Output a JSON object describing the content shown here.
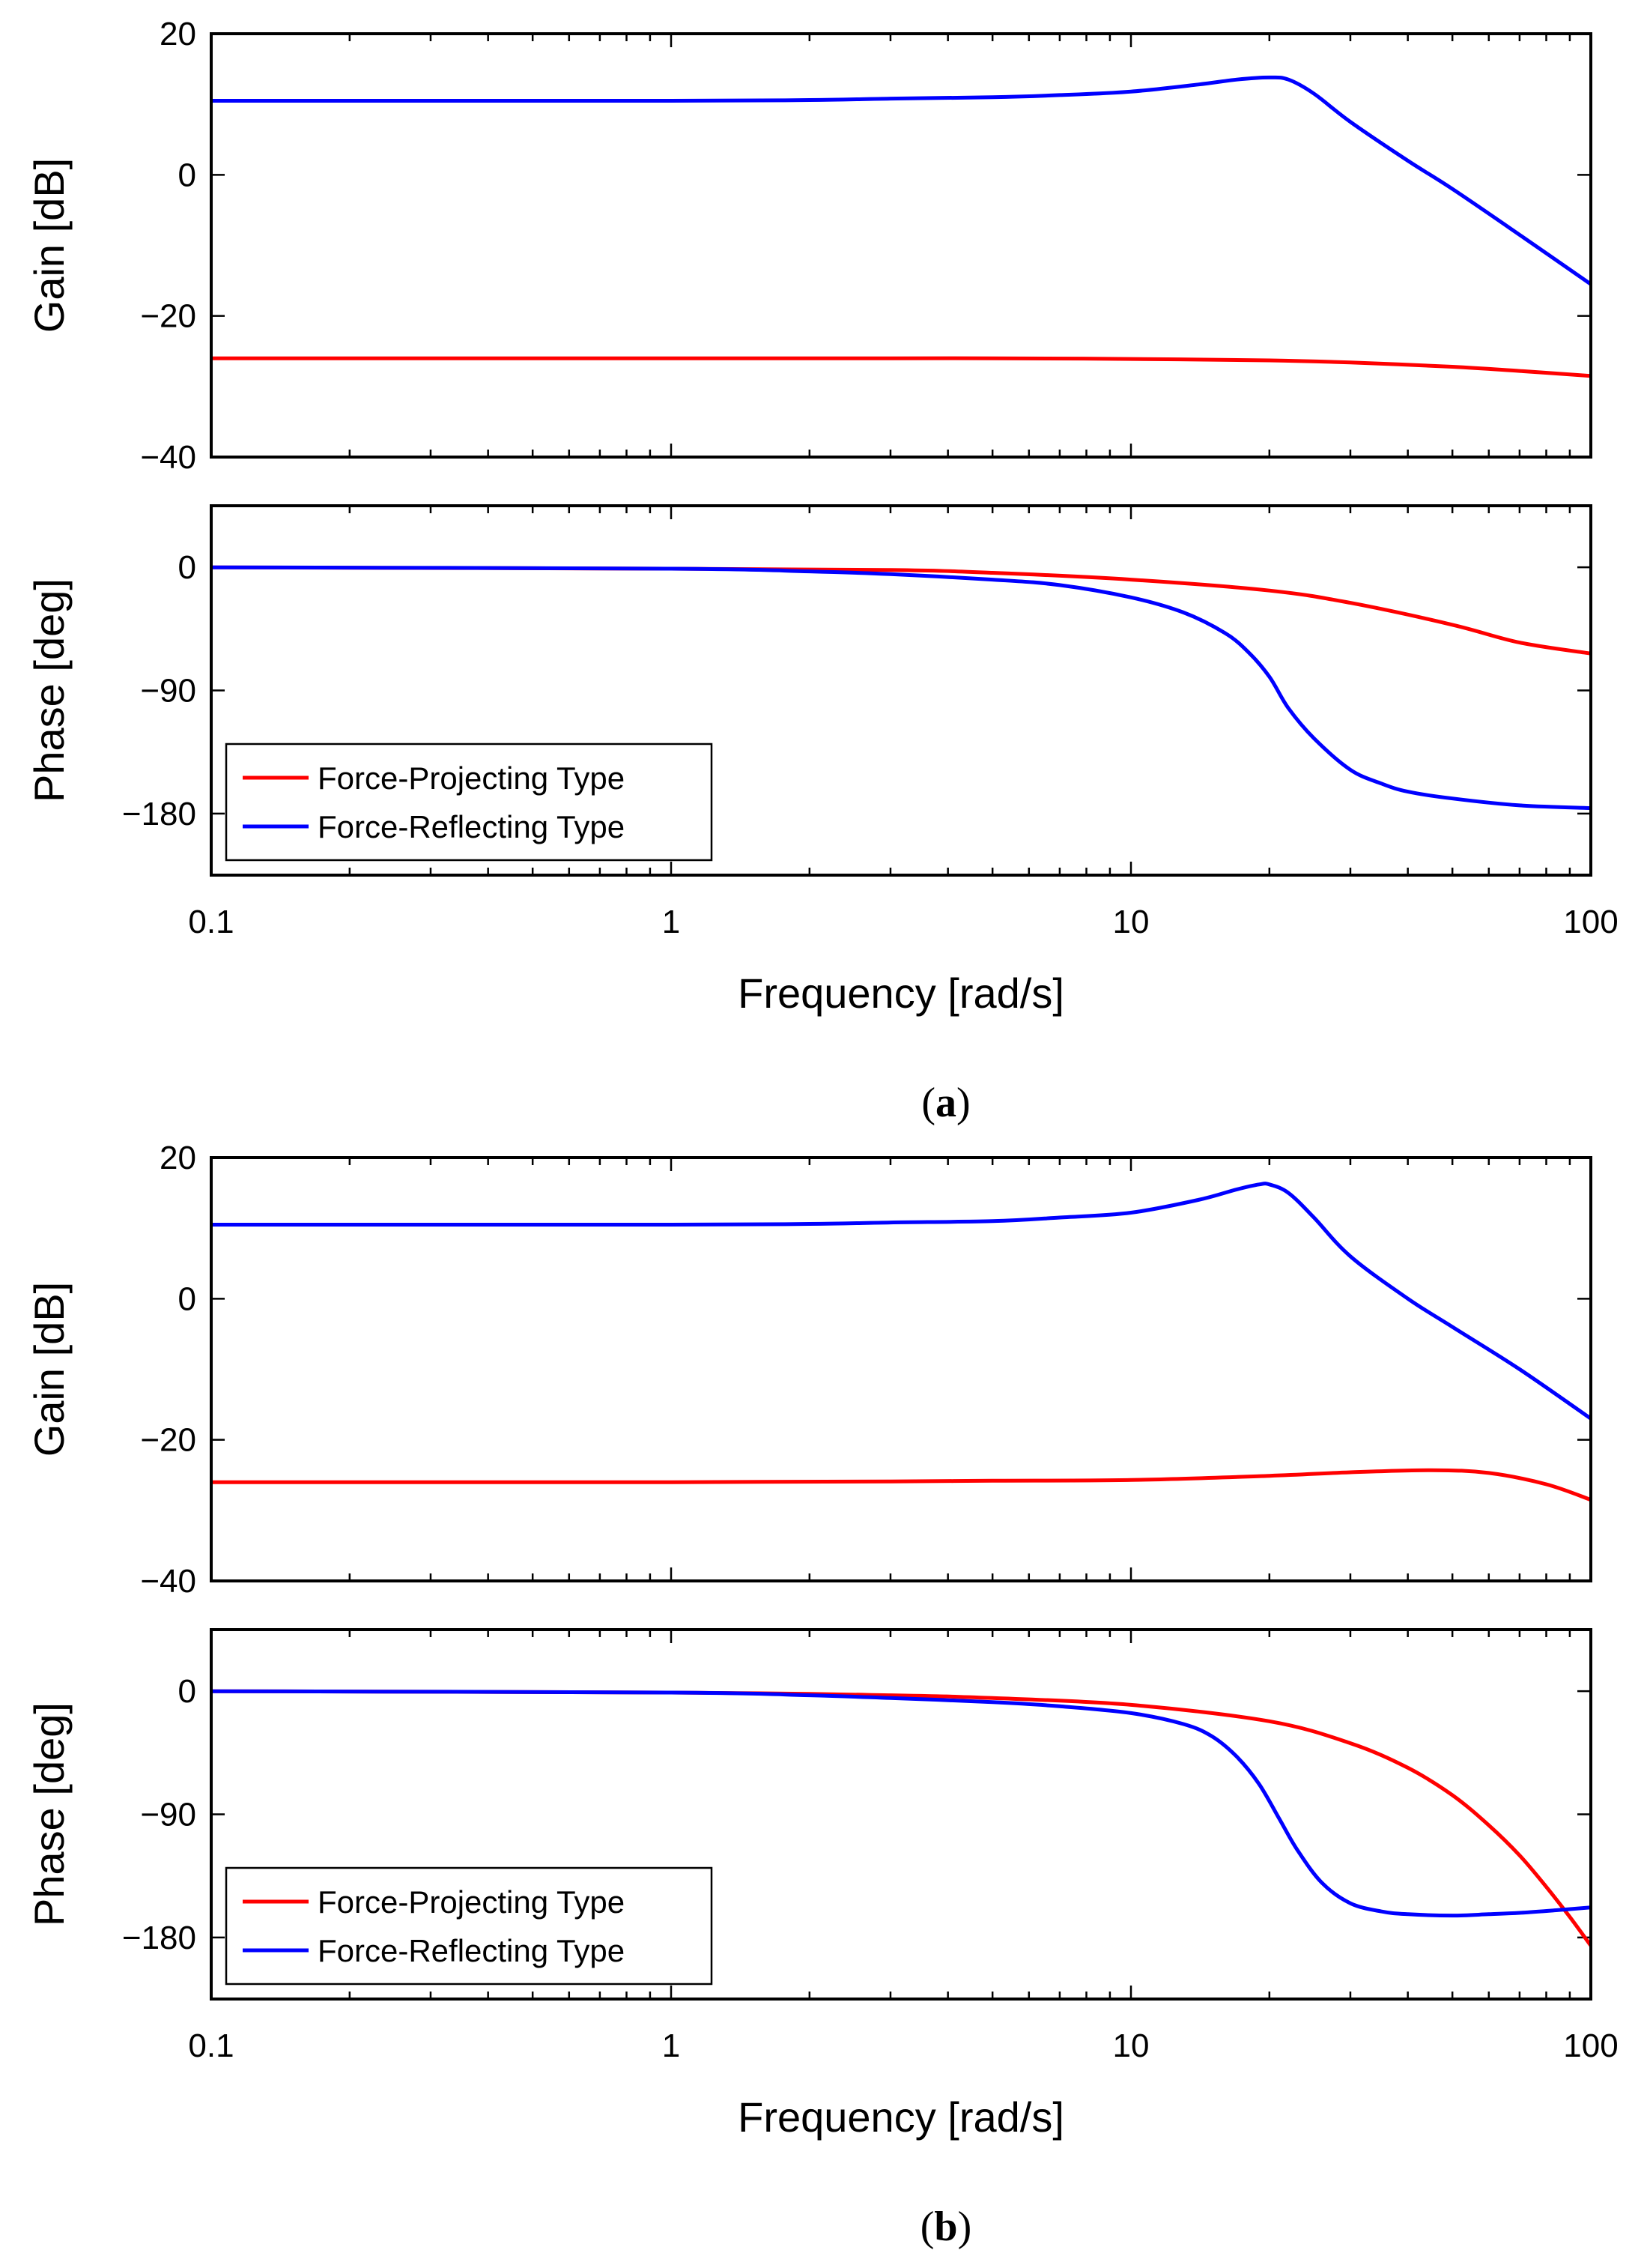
{
  "chart_data": [
    {
      "type": "line",
      "caption": "a",
      "xlabel": "Frequency [rad/s]",
      "xscale": "log",
      "xlim": [
        0.1,
        100
      ],
      "xticklabels": [
        "0.1",
        "1",
        "10",
        "100"
      ],
      "gain": {
        "ylabel": "Gain [dB]",
        "ylim": [
          -40,
          20
        ],
        "yticklabels": [
          "20",
          "0",
          "−20",
          "−40"
        ],
        "series": [
          {
            "name": "Force-Projecting Type",
            "color": "#ff0000",
            "x": [
              0.1,
              1,
              3,
              5,
              10,
              20,
              30,
              50,
              70,
              100
            ],
            "values": [
              -26,
              -26,
              -26,
              -26,
              -26.1,
              -26.3,
              -26.6,
              -27.2,
              -27.8,
              -28.5
            ]
          },
          {
            "name": "Force-Reflecting Type",
            "color": "#0000ff",
            "x": [
              0.1,
              1,
              2,
              3,
              5,
              7,
              10,
              14,
              17,
              20,
              22,
              25,
              30,
              40,
              50,
              70,
              100
            ],
            "values": [
              10.5,
              10.5,
              10.6,
              10.8,
              11.0,
              11.3,
              11.8,
              12.8,
              13.5,
              13.8,
              13.5,
              11.5,
              7.5,
              2.0,
              -2.0,
              -8.5,
              -15.5
            ]
          }
        ]
      },
      "phase": {
        "ylabel": "Phase [deg]",
        "ylim": [
          -225,
          45
        ],
        "yticklabels": [
          "0",
          "−90",
          "−180"
        ],
        "legend": "bottom-left",
        "series": [
          {
            "name": "Force-Projecting Type",
            "color": "#ff0000",
            "x": [
              0.1,
              1,
              3,
              5,
              10,
              20,
              30,
              50,
              70,
              100
            ],
            "values": [
              0,
              -1,
              -2,
              -4,
              -9,
              -17,
              -26,
              -42,
              -55,
              -63
            ]
          },
          {
            "name": "Force-Reflecting Type",
            "color": "#0000ff",
            "x": [
              0.1,
              1,
              2,
              3,
              5,
              7,
              10,
              13,
              16,
              18,
              20,
              22,
              25,
              30,
              35,
              40,
              50,
              70,
              100
            ],
            "values": [
              0,
              -1,
              -3,
              -5,
              -9,
              -13,
              -22,
              -33,
              -48,
              -62,
              -80,
              -103,
              -125,
              -148,
              -158,
              -164,
              -169,
              -174,
              -176
            ]
          }
        ]
      }
    },
    {
      "type": "line",
      "caption": "b",
      "xlabel": "Frequency [rad/s]",
      "xscale": "log",
      "xlim": [
        0.1,
        100
      ],
      "xticklabels": [
        "0.1",
        "1",
        "10",
        "100"
      ],
      "gain": {
        "ylabel": "Gain [dB]",
        "ylim": [
          -40,
          20
        ],
        "yticklabels": [
          "20",
          "0",
          "−20",
          "−40"
        ],
        "series": [
          {
            "name": "Force-Projecting Type",
            "color": "#ff0000",
            "x": [
              0.1,
              1,
              3,
              5,
              10,
              20,
              30,
              45,
              60,
              80,
              100
            ],
            "values": [
              -26,
              -26,
              -25.9,
              -25.8,
              -25.7,
              -25.1,
              -24.6,
              -24.3,
              -24.7,
              -26.3,
              -28.5
            ]
          },
          {
            "name": "Force-Reflecting Type",
            "color": "#0000ff",
            "x": [
              0.1,
              1,
              2,
              3,
              5,
              7,
              10,
              14,
              17,
              19,
              20,
              22,
              25,
              30,
              40,
              50,
              70,
              100
            ],
            "values": [
              10.5,
              10.5,
              10.6,
              10.8,
              11.0,
              11.5,
              12.2,
              14.0,
              15.5,
              16.2,
              16.2,
              15.0,
              11.5,
              6.0,
              0,
              -4.0,
              -10.0,
              -17.0
            ]
          }
        ]
      },
      "phase": {
        "ylabel": "Phase [deg]",
        "ylim": [
          -225,
          45
        ],
        "yticklabels": [
          "0",
          "−90",
          "−180"
        ],
        "legend": "bottom-left",
        "series": [
          {
            "name": "Force-Projecting Type",
            "color": "#ff0000",
            "x": [
              0.1,
              1,
              3,
              5,
              10,
              20,
              30,
              40,
              50,
              60,
              70,
              80,
              90,
              100
            ],
            "values": [
              0,
              -1,
              -3,
              -5,
              -10,
              -22,
              -38,
              -56,
              -76,
              -98,
              -120,
              -143,
              -165,
              -186
            ]
          },
          {
            "name": "Force-Reflecting Type",
            "color": "#0000ff",
            "x": [
              0.1,
              1,
              2,
              3,
              5,
              7,
              10,
              13,
              15,
              17,
              19,
              21,
              23,
              26,
              30,
              35,
              40,
              50,
              60,
              70,
              85,
              100
            ],
            "values": [
              0,
              -1,
              -3,
              -5,
              -8,
              -11,
              -16,
              -24,
              -33,
              -48,
              -68,
              -93,
              -116,
              -140,
              -155,
              -161,
              -163,
              -164,
              -163,
              -162,
              -160,
              -158
            ]
          }
        ]
      }
    }
  ]
}
